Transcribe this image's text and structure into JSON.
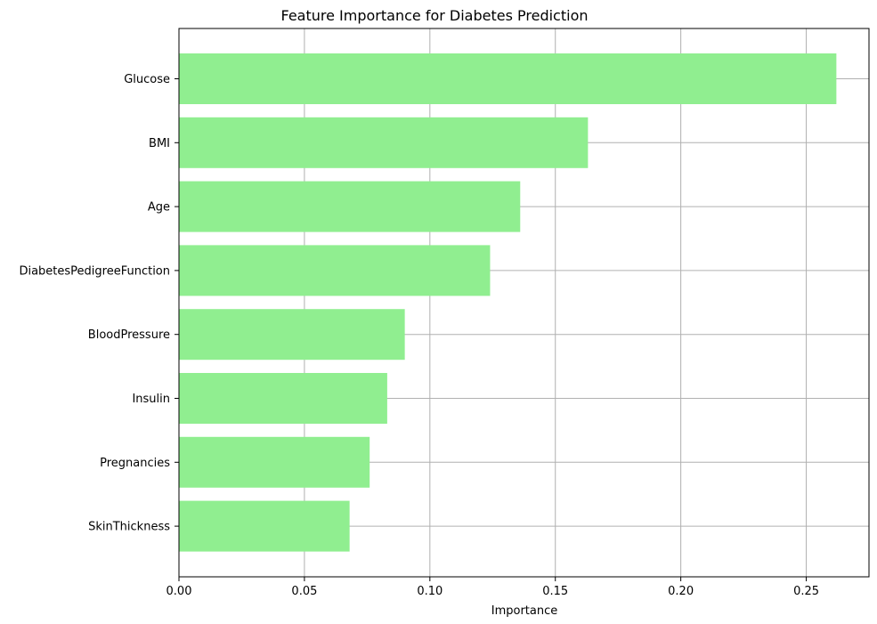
{
  "chart_data": {
    "type": "bar",
    "orientation": "horizontal",
    "title": "Feature Importance for Diabetes Prediction",
    "xlabel": "Importance",
    "ylabel": "",
    "categories": [
      "Glucose",
      "BMI",
      "Age",
      "DiabetesPedigreeFunction",
      "BloodPressure",
      "Insulin",
      "Pregnancies",
      "SkinThickness"
    ],
    "values": [
      0.262,
      0.163,
      0.136,
      0.124,
      0.09,
      0.083,
      0.076,
      0.068
    ],
    "xlim": [
      0,
      0.275
    ],
    "xticks": [
      0.0,
      0.05,
      0.1,
      0.15,
      0.2,
      0.25
    ],
    "xtick_labels": [
      "0.00",
      "0.05",
      "0.10",
      "0.15",
      "0.20",
      "0.25"
    ],
    "grid": true,
    "bar_color": "#90ee90",
    "grid_color": "#b0b0b0"
  }
}
